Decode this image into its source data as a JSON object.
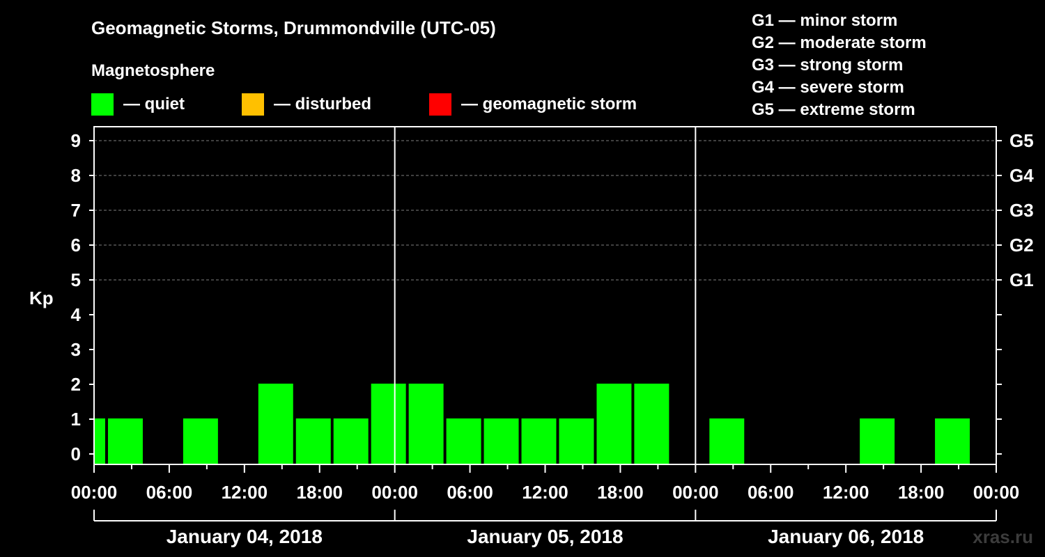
{
  "title": "Geomagnetic Storms, Drummondville (UTC-05)",
  "magnetosphere_heading": "Magnetosphere",
  "legend": [
    {
      "label": "— quiet",
      "color": "#00ff00"
    },
    {
      "label": "— disturbed",
      "color": "#ffc000"
    },
    {
      "label": "— geomagnetic storm",
      "color": "#ff0000"
    }
  ],
  "storm_scale": [
    "G1 — minor storm",
    "G2 — moderate storm",
    "G3 — strong storm",
    "G4 — severe storm",
    "G5 — extreme storm"
  ],
  "watermark": "xras.ru",
  "chart_data": {
    "type": "bar",
    "ylabel": "Kp",
    "ylim": [
      0,
      9
    ],
    "yticks": [
      0,
      1,
      2,
      3,
      4,
      5,
      6,
      7,
      8,
      9
    ],
    "right_ticks": [
      {
        "kp": 5,
        "label": "G1"
      },
      {
        "kp": 6,
        "label": "G2"
      },
      {
        "kp": 7,
        "label": "G3"
      },
      {
        "kp": 8,
        "label": "G4"
      },
      {
        "kp": 9,
        "label": "G5"
      }
    ],
    "grid": "dashed horizontal at Kp 5–9",
    "x_range_hours": [
      0,
      72
    ],
    "xtick_labels": [
      "00:00",
      "06:00",
      "12:00",
      "18:00",
      "00:00",
      "06:00",
      "12:00",
      "18:00",
      "00:00",
      "06:00",
      "12:00",
      "18:00",
      "00:00"
    ],
    "days": [
      "January 04, 2018",
      "January 05, 2018",
      "January 06, 2018"
    ],
    "bars": [
      {
        "start_hour": 0,
        "end_hour": 1,
        "kp": 1
      },
      {
        "start_hour": 1,
        "end_hour": 4,
        "kp": 1
      },
      {
        "start_hour": 4,
        "end_hour": 7,
        "kp": 0
      },
      {
        "start_hour": 7,
        "end_hour": 10,
        "kp": 1
      },
      {
        "start_hour": 10,
        "end_hour": 13,
        "kp": 0
      },
      {
        "start_hour": 13,
        "end_hour": 16,
        "kp": 2
      },
      {
        "start_hour": 16,
        "end_hour": 19,
        "kp": 1
      },
      {
        "start_hour": 19,
        "end_hour": 22,
        "kp": 1
      },
      {
        "start_hour": 22,
        "end_hour": 25,
        "kp": 2
      },
      {
        "start_hour": 25,
        "end_hour": 28,
        "kp": 2
      },
      {
        "start_hour": 28,
        "end_hour": 31,
        "kp": 1
      },
      {
        "start_hour": 31,
        "end_hour": 34,
        "kp": 1
      },
      {
        "start_hour": 34,
        "end_hour": 37,
        "kp": 1
      },
      {
        "start_hour": 37,
        "end_hour": 40,
        "kp": 1
      },
      {
        "start_hour": 40,
        "end_hour": 43,
        "kp": 2
      },
      {
        "start_hour": 43,
        "end_hour": 46,
        "kp": 2
      },
      {
        "start_hour": 46,
        "end_hour": 49,
        "kp": 0
      },
      {
        "start_hour": 49,
        "end_hour": 52,
        "kp": 1
      },
      {
        "start_hour": 52,
        "end_hour": 55,
        "kp": 0
      },
      {
        "start_hour": 55,
        "end_hour": 58,
        "kp": 0
      },
      {
        "start_hour": 58,
        "end_hour": 61,
        "kp": 0
      },
      {
        "start_hour": 61,
        "end_hour": 64,
        "kp": 1
      },
      {
        "start_hour": 64,
        "end_hour": 67,
        "kp": 0
      },
      {
        "start_hour": 67,
        "end_hour": 70,
        "kp": 1
      },
      {
        "start_hour": 70,
        "end_hour": 72,
        "kp": 0
      }
    ],
    "bar_color": "#00ff00"
  }
}
